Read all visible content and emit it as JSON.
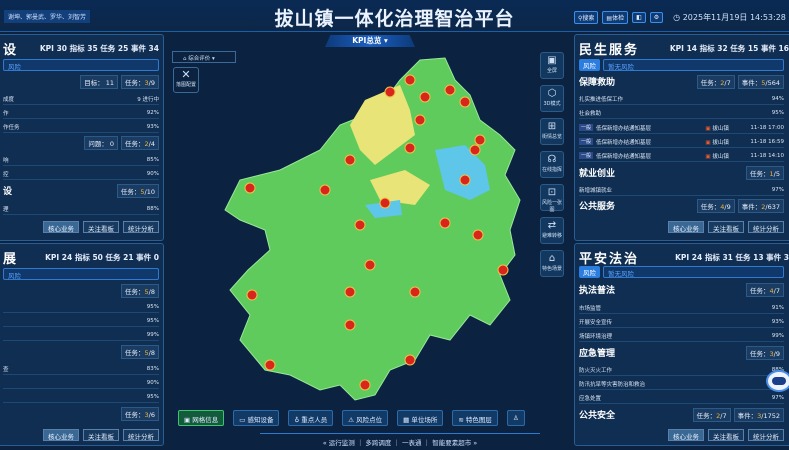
{
  "header": {
    "users": "谢坤、郭曼武、罗华、刘智芳",
    "title": "拔山镇一体化治理智治平台",
    "search": "搜索",
    "check": "体检",
    "datetime": "2025年11月19日 14:53:28"
  },
  "map": {
    "kpi_dropdown": "KPI总览 ▾",
    "eval_select": "综合评价",
    "layer_btn": "落图配置",
    "side_tools": [
      {
        "icon": "fullscreen-icon",
        "label": "全屏"
      },
      {
        "icon": "cube-icon",
        "label": "3D模式"
      },
      {
        "icon": "map-icon",
        "label": "街情总览"
      },
      {
        "icon": "headset-icon",
        "label": "在线指挥"
      },
      {
        "icon": "risk-map-icon",
        "label": "风险一张图"
      },
      {
        "icon": "transfer-icon",
        "label": "避难转移"
      },
      {
        "icon": "home-icon",
        "label": "特色场景"
      }
    ],
    "toolbar": [
      {
        "icon": "grid-icon",
        "label": "网格信息"
      },
      {
        "icon": "camera-icon",
        "label": "感知设备"
      },
      {
        "icon": "person-icon",
        "label": "重点人员"
      },
      {
        "icon": "warning-icon",
        "label": "风险点位"
      },
      {
        "icon": "building-icon",
        "label": "单位场所"
      },
      {
        "icon": "layers-icon",
        "label": "特色图层"
      }
    ],
    "footer": "运行监测 ｜ 多跨调度 ｜ 一表通 ｜ 智能要素超市"
  },
  "left_top": {
    "title": "设",
    "kpi": "KPI 30 指标 35 任务 25 事件 34",
    "risk": "风险",
    "s1": {
      "c1": "目标： 11",
      "t_pre": "任务：",
      "t_done": "3",
      "t_tot": "/9"
    },
    "r1": [
      "成度",
      "9  进行中"
    ],
    "r2": [
      "作",
      "92%"
    ],
    "r3": [
      "作任务",
      "93%"
    ],
    "s2": {
      "c1": "问题： 0",
      "t_pre": "任务：",
      "t_done": "2",
      "t_tot": "/4"
    },
    "r4": [
      "响",
      "85%"
    ],
    "r5": [
      "控",
      "90%"
    ],
    "s3": {
      "name": "设",
      "t_pre": "任务：",
      "t_done": "5",
      "t_tot": "/10"
    },
    "r6": [
      "理",
      "88%"
    ]
  },
  "left_bottom": {
    "title": "展",
    "kpi": "KPI 24 指标 50 任务 21 事件 0",
    "risk": "风险",
    "s1": {
      "t_pre": "任务：",
      "t_done": "5",
      "t_tot": "/8"
    },
    "r1": "95%",
    "r2": "95%",
    "r3": "99%",
    "s2": {
      "t_pre": "任务：",
      "t_done": "5",
      "t_tot": "/8"
    },
    "r4": [
      "查",
      "83%"
    ],
    "r5": "90%",
    "r6": "95%",
    "s3": {
      "t_pre": "任务：",
      "t_done": "3",
      "t_tot": "/6"
    }
  },
  "right_top": {
    "title": "民生服务",
    "kpi": "KPI 14 指标 32 任务 15 事件 16",
    "risk_tag": "风险",
    "risk": "暂无风险",
    "s1": {
      "name": "保障救助",
      "t_pre": "任务：",
      "t_done": "2",
      "t_tot": "/7",
      "e_pre": "事件：",
      "e_done": "5",
      "e_tot": "/564"
    },
    "r1": [
      "扎实推进低保工作",
      "94%"
    ],
    "r2": [
      "社会救助",
      "95%"
    ],
    "items": [
      {
        "badge": "一般",
        "text": "低保新增办结通知基层",
        "town": "拔山镇",
        "time": "11-18 17:00"
      },
      {
        "badge": "一般",
        "text": "低保新增办结通知基层",
        "town": "拔山镇",
        "time": "11-18 16:59"
      },
      {
        "badge": "一般",
        "text": "低保新增办结通知基层",
        "town": "拔山镇",
        "time": "11-18 14:10"
      }
    ],
    "s2": {
      "name": "就业创业",
      "t_pre": "任务：",
      "t_done": "1",
      "t_tot": "/5"
    },
    "r3": [
      "新增城镇就业",
      "97%"
    ],
    "s3": {
      "name": "公共服务",
      "t_pre": "任务：",
      "t_done": "4",
      "t_tot": "/9",
      "e_pre": "事件：",
      "e_done": "2",
      "e_tot": "/637"
    }
  },
  "right_bottom": {
    "title": "平安法治",
    "kpi": "KPI 24 指标 31 任务 13 事件 3",
    "risk_tag": "风险",
    "risk": "暂无风险",
    "s1": {
      "name": "执法普法",
      "t_pre": "任务：",
      "t_done": "4",
      "t_tot": "/7"
    },
    "r1": [
      "市场监管",
      "91%"
    ],
    "r2": [
      "开展安全宣传",
      "93%"
    ],
    "r3": [
      "场镇环境治理",
      "99%"
    ],
    "s2": {
      "name": "应急管理",
      "t_pre": "任务：",
      "t_done": "3",
      "t_tot": "/9"
    },
    "r4": [
      "防火灭火工作",
      "88%"
    ],
    "r5": [
      "防汛抗旱等灾害防治和救治",
      ""
    ],
    "r6": [
      "应急处置",
      "97%"
    ],
    "s3": {
      "name": "公共安全",
      "t_pre": "任务：",
      "t_done": "2",
      "t_tot": "/7",
      "e_pre": "事件：",
      "e_done": "3",
      "e_tot": "/1752"
    }
  },
  "buttons": {
    "core": "核心业务",
    "focus": "关注看板",
    "stats": "统计分析"
  }
}
